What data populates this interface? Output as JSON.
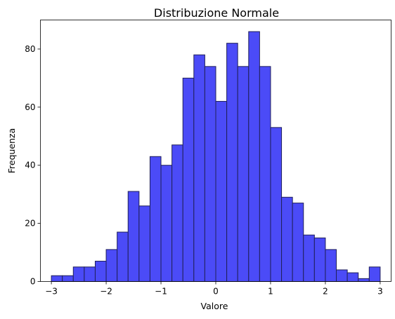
{
  "chart_data": {
    "type": "bar",
    "title": "Distribuzione Normale",
    "xlabel": "Valore",
    "ylabel": "Frequenza",
    "xlim": [
      -3.2,
      3.2
    ],
    "ylim": [
      0,
      90
    ],
    "xticks": [
      -3,
      -2,
      -1,
      0,
      1,
      2,
      3
    ],
    "yticks": [
      0,
      20,
      40,
      60,
      80
    ],
    "grid": false,
    "bar_color": "#4b4bf7",
    "edge_color": "#20205a",
    "bins": {
      "edges": [
        -3.0,
        -2.8,
        -2.6,
        -2.4,
        -2.2,
        -2.0,
        -1.8,
        -1.6,
        -1.4,
        -1.2,
        -1.0,
        -0.8,
        -0.6,
        -0.4,
        -0.2,
        0.0,
        0.2,
        0.4,
        0.6,
        0.8,
        1.0,
        1.2,
        1.4,
        1.6,
        1.8,
        2.0,
        2.2,
        2.4,
        2.6,
        2.8,
        3.0
      ],
      "counts": [
        2,
        2,
        5,
        5,
        7,
        11,
        17,
        31,
        26,
        43,
        40,
        47,
        70,
        78,
        74,
        62,
        82,
        74,
        86,
        74,
        53,
        29,
        27,
        16,
        15,
        11,
        4,
        3,
        1,
        5
      ]
    }
  }
}
